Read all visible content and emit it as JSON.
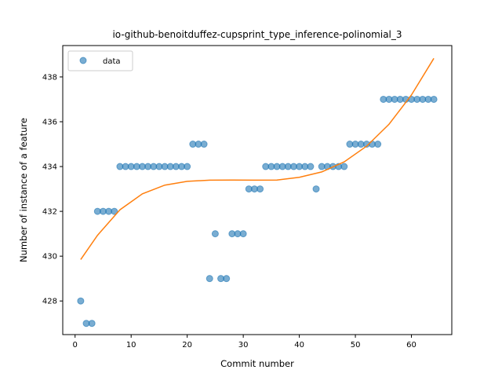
{
  "chart_data": {
    "type": "scatter",
    "title": "io-github-benoitduffez-cupsprint_type_inference-polinomial_3",
    "xlabel": "Commit number",
    "ylabel": "Number of instance of a feature",
    "xlim": [
      -2.2,
      67.2
    ],
    "ylim": [
      426.5,
      439.4
    ],
    "xticks": [
      0,
      10,
      20,
      30,
      40,
      50,
      60
    ],
    "yticks": [
      428,
      430,
      432,
      434,
      436,
      438
    ],
    "legend": {
      "position": "top-left",
      "entries": [
        "data"
      ]
    },
    "colors": {
      "points": "#1f77b4",
      "fit": "#ff7f0e"
    },
    "series": [
      {
        "name": "data",
        "kind": "points",
        "x": [
          1,
          2,
          3,
          4,
          5,
          6,
          7,
          8,
          9,
          10,
          11,
          12,
          13,
          14,
          15,
          16,
          17,
          18,
          19,
          20,
          21,
          22,
          23,
          24,
          25,
          26,
          27,
          28,
          29,
          30,
          31,
          32,
          33,
          34,
          35,
          36,
          37,
          38,
          39,
          40,
          41,
          42,
          43,
          44,
          45,
          46,
          47,
          48,
          49,
          50,
          51,
          52,
          53,
          54,
          55,
          56,
          57,
          58,
          59,
          60,
          61,
          62,
          63,
          64
        ],
        "y": [
          428,
          427,
          427,
          432,
          432,
          432,
          432,
          434,
          434,
          434,
          434,
          434,
          434,
          434,
          434,
          434,
          434,
          434,
          434,
          434,
          435,
          435,
          435,
          429,
          431,
          429,
          429,
          431,
          431,
          431,
          433,
          433,
          433,
          434,
          434,
          434,
          434,
          434,
          434,
          434,
          434,
          434,
          433,
          434,
          434,
          434,
          434,
          434,
          435,
          435,
          435,
          435,
          435,
          435,
          437,
          437,
          437,
          437,
          437,
          437,
          437,
          437,
          437,
          437
        ]
      },
      {
        "kind": "fit",
        "x": [
          1,
          4,
          8,
          12,
          16,
          20,
          24,
          28,
          32,
          36,
          40,
          44,
          48,
          52,
          56,
          60,
          64
        ],
        "y": [
          429.85,
          430.93,
          432.07,
          432.78,
          433.17,
          433.34,
          433.39,
          433.4,
          433.39,
          433.4,
          433.52,
          433.76,
          434.21,
          434.91,
          435.89,
          437.19,
          438.83
        ]
      }
    ]
  }
}
